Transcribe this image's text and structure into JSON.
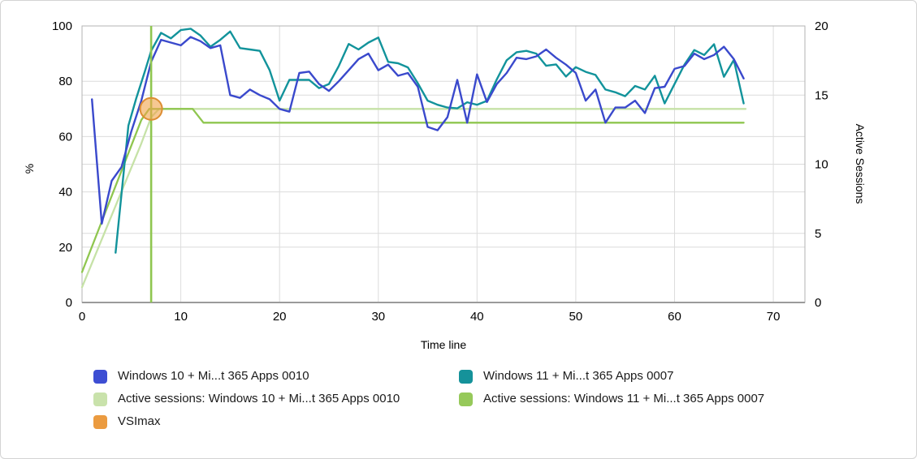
{
  "chart_data": {
    "type": "line",
    "title": "",
    "xlabel": "Time line",
    "ylabel_left": "%",
    "ylabel_right": "Active Sessions",
    "x_range": [
      0,
      73.2
    ],
    "y_left_range": [
      0,
      100
    ],
    "y_right_range": [
      0,
      20
    ],
    "x_ticks": [
      0,
      10,
      20,
      30,
      40,
      50,
      60,
      70
    ],
    "y_left_ticks": [
      0,
      20,
      40,
      60,
      80,
      100
    ],
    "y_right_ticks": [
      0,
      5,
      10,
      15,
      20
    ],
    "grid": true,
    "legend_position": "bottom",
    "colors": {
      "grid": "#dcdcdc",
      "plot_border": "#b3b3b3",
      "axis_line": "#9b9b9b"
    },
    "series": [
      {
        "name": "Active sessions: Windows 10 + Mi...t 365 Apps 0010",
        "axis": "right",
        "color": "#c6e2a7",
        "width": 2.3,
        "points": [
          [
            0,
            1.1
          ],
          [
            6,
            11.5
          ],
          [
            7,
            13.4
          ],
          [
            7.8,
            14
          ],
          [
            67.2,
            14
          ]
        ]
      },
      {
        "name": "Active sessions: Windows 11 + Mi...t 365 Apps 0007",
        "axis": "right",
        "color": "#8fc64f",
        "width": 2.3,
        "points": [
          [
            0,
            2.2
          ],
          [
            6,
            13.2
          ],
          [
            6.8,
            14
          ],
          [
            11.2,
            14
          ],
          [
            12.3,
            13
          ],
          [
            67,
            13
          ]
        ]
      },
      {
        "name": "Windows 11 + Mi...t 365 Apps 0007",
        "axis": "left",
        "color": "#12939b",
        "width": 2.4,
        "points": [
          [
            3.4,
            18
          ],
          [
            4.7,
            64
          ],
          [
            5.5,
            74
          ],
          [
            6.4,
            84
          ],
          [
            7,
            91
          ],
          [
            8,
            97.5
          ],
          [
            9,
            95.5
          ],
          [
            10,
            98.5
          ],
          [
            11,
            99
          ],
          [
            12,
            96.5
          ],
          [
            13,
            92.5
          ],
          [
            14,
            95
          ],
          [
            15,
            98
          ],
          [
            16,
            92
          ],
          [
            17,
            91.5
          ],
          [
            18,
            91
          ],
          [
            19,
            84
          ],
          [
            20,
            73
          ],
          [
            21,
            80.5
          ],
          [
            22,
            80.5
          ],
          [
            23,
            80.5
          ],
          [
            24,
            77.5
          ],
          [
            25,
            79
          ],
          [
            26,
            85.5
          ],
          [
            27,
            93.5
          ],
          [
            28,
            91.5
          ],
          [
            29,
            94
          ],
          [
            30,
            95.8
          ],
          [
            31,
            87
          ],
          [
            32,
            86.5
          ],
          [
            33,
            85
          ],
          [
            34,
            79.3
          ],
          [
            35,
            73
          ],
          [
            36,
            71.5
          ],
          [
            37,
            70.5
          ],
          [
            38,
            70.2
          ],
          [
            39,
            72.4
          ],
          [
            40,
            71.5
          ],
          [
            41,
            72.9
          ],
          [
            42,
            80.7
          ],
          [
            43,
            87.6
          ],
          [
            44,
            90.5
          ],
          [
            45,
            91
          ],
          [
            46,
            90
          ],
          [
            47,
            85.6
          ],
          [
            48,
            86.1
          ],
          [
            49,
            81.7
          ],
          [
            50,
            85.1
          ],
          [
            51,
            83.4
          ],
          [
            52,
            82.3
          ],
          [
            53,
            77
          ],
          [
            54,
            76
          ],
          [
            55,
            74.6
          ],
          [
            56,
            78.3
          ],
          [
            57,
            77
          ],
          [
            58,
            82
          ],
          [
            59,
            72
          ],
          [
            60,
            79
          ],
          [
            61,
            86
          ],
          [
            62,
            91.3
          ],
          [
            63,
            89.5
          ],
          [
            64,
            93.4
          ],
          [
            65,
            81.6
          ],
          [
            66,
            87.7
          ],
          [
            67,
            72
          ]
        ]
      },
      {
        "name": "Windows 10 + Mi...t 365 Apps 0010",
        "axis": "left",
        "color": "#3a49cc",
        "width": 2.4,
        "points": [
          [
            1,
            73.5
          ],
          [
            2,
            28.5
          ],
          [
            3,
            44
          ],
          [
            4,
            49
          ],
          [
            5,
            62
          ],
          [
            6,
            73
          ],
          [
            7,
            87
          ],
          [
            8,
            95
          ],
          [
            9,
            94
          ],
          [
            10,
            93
          ],
          [
            11,
            96
          ],
          [
            12,
            94.5
          ],
          [
            13,
            92
          ],
          [
            14,
            93
          ],
          [
            15,
            75
          ],
          [
            16,
            74
          ],
          [
            17,
            77
          ],
          [
            18,
            75
          ],
          [
            19,
            73.5
          ],
          [
            20,
            70
          ],
          [
            21,
            69
          ],
          [
            22,
            83
          ],
          [
            23,
            83.5
          ],
          [
            24,
            79
          ],
          [
            25,
            76.5
          ],
          [
            26,
            80
          ],
          [
            27,
            84
          ],
          [
            28,
            88
          ],
          [
            29,
            90
          ],
          [
            30,
            84
          ],
          [
            31,
            86
          ],
          [
            32,
            82
          ],
          [
            33,
            83
          ],
          [
            34,
            78
          ],
          [
            35,
            63.5
          ],
          [
            36,
            62.3
          ],
          [
            37,
            67
          ],
          [
            38,
            80.5
          ],
          [
            39,
            65
          ],
          [
            40,
            82.5
          ],
          [
            41,
            72.5
          ],
          [
            42,
            79
          ],
          [
            43,
            83
          ],
          [
            44,
            88.5
          ],
          [
            45,
            88
          ],
          [
            46,
            89
          ],
          [
            47,
            91.5
          ],
          [
            48,
            88.5
          ],
          [
            49,
            86
          ],
          [
            50,
            83
          ],
          [
            51,
            73
          ],
          [
            52,
            77
          ],
          [
            53,
            65
          ],
          [
            54,
            70.5
          ],
          [
            55,
            70.5
          ],
          [
            56,
            73
          ],
          [
            57,
            68.5
          ],
          [
            58,
            77.5
          ],
          [
            59,
            78
          ],
          [
            60,
            84.5
          ],
          [
            61,
            85.5
          ],
          [
            62,
            90
          ],
          [
            63,
            88
          ],
          [
            64,
            89.5
          ],
          [
            65,
            92.5
          ],
          [
            66,
            88
          ],
          [
            67,
            81
          ]
        ]
      }
    ],
    "vsimax": {
      "label": "VSImax",
      "x": 7,
      "value_pct": 70,
      "sessions": 14,
      "line_color": "#8fc64f",
      "marker_fill": "#f0a449",
      "marker_stroke": "#dd8d33"
    }
  },
  "legend": {
    "items": [
      {
        "label": "Windows 10 + Mi...t 365 Apps 0010",
        "color": "#3d4ed3"
      },
      {
        "label": "Windows 11 + Mi...t 365 Apps 0007",
        "color": "#15929a"
      },
      {
        "label": "Active sessions: Windows 10 + Mi...t 365 Apps 0010",
        "color": "#c9e2ab"
      },
      {
        "label": "Active sessions: Windows 11 + Mi...t 365 Apps 0007",
        "color": "#96c95a"
      },
      {
        "label": "VSImax",
        "color": "#eb9b40"
      }
    ]
  }
}
